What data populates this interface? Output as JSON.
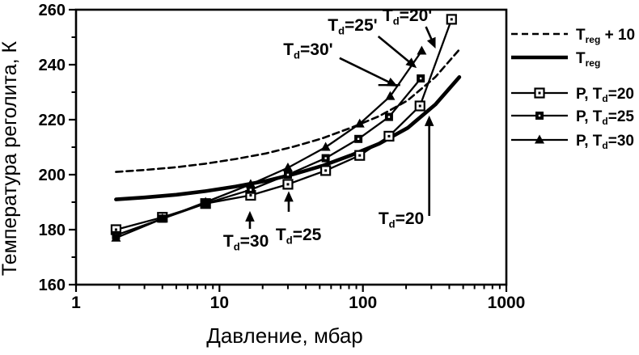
{
  "figure": {
    "background": "#ffffff",
    "ink": "#000000"
  },
  "chart_data": {
    "type": "line",
    "title": "",
    "xlabel": "Давление, мбар",
    "ylabel": "Температура реголита, К",
    "x_scale": "log",
    "xlim": [
      1,
      1000
    ],
    "ylim": [
      160,
      260
    ],
    "grid": false,
    "legend_position": "right-outside",
    "x_major_ticks": [
      1,
      10,
      100,
      1000
    ],
    "x_tick_labels": [
      "1",
      "10",
      "100",
      "1000"
    ],
    "x_minor_ticks": [
      2,
      3,
      4,
      5,
      6,
      7,
      8,
      9,
      20,
      30,
      40,
      50,
      60,
      70,
      80,
      90,
      200,
      300,
      400,
      500,
      600,
      700,
      800,
      900
    ],
    "y_major_ticks": [
      160,
      180,
      200,
      220,
      240,
      260
    ],
    "y_tick_labels": [
      "160",
      "180",
      "200",
      "220",
      "240",
      "260"
    ],
    "y_minor_ticks": [
      170,
      190,
      210,
      230,
      250
    ],
    "series": [
      {
        "name": "T_[reg] + 10",
        "style": "dashed",
        "marker": "none",
        "x": [
          1.9,
          3,
          5,
          8,
          13,
          21,
          33,
          52,
          82,
          130,
          205,
          320,
          470
        ],
        "y": [
          201,
          201.7,
          202.7,
          204,
          205.7,
          207.7,
          210.2,
          213.2,
          217,
          221.3,
          227,
          235.5,
          245.5
        ]
      },
      {
        "name": "T_[reg]",
        "style": "thick",
        "marker": "none",
        "x": [
          1.9,
          3,
          5,
          8,
          13,
          21,
          33,
          52,
          82,
          130,
          205,
          320,
          470
        ],
        "y": [
          191,
          191.7,
          192.7,
          194,
          195.7,
          197.7,
          200.2,
          203.2,
          207,
          211.3,
          217,
          225.5,
          235.5
        ]
      },
      {
        "name": "P, T_[d]=20",
        "style": "solid",
        "marker": "open-square",
        "x": [
          1.9,
          4,
          8,
          16.5,
          30,
          55,
          95,
          152,
          250,
          415
        ],
        "y": [
          180,
          184.5,
          189.5,
          192.5,
          196.5,
          201.5,
          207,
          214,
          225,
          256.5
        ]
      },
      {
        "name": "P, T_[d]=25",
        "style": "solid",
        "marker": "filled-square",
        "x": [
          1.9,
          4,
          8,
          16.5,
          30,
          55,
          93,
          152,
          253
        ],
        "y": [
          178,
          184,
          189.5,
          194.5,
          200,
          206,
          213,
          221,
          235
        ]
      },
      {
        "name": "P, T_[d]=30",
        "style": "solid",
        "marker": "filled-triangle",
        "x": [
          1.9,
          4,
          8,
          16.5,
          30,
          55,
          95,
          155,
          257
        ],
        "y": [
          177,
          184,
          190,
          196.5,
          202.5,
          210,
          218.5,
          228.5,
          245
        ]
      }
    ],
    "annotations": [
      {
        "text": "T_[d]=30",
        "x": 15.3,
        "y": 175.9,
        "arrow": {
          "from": [
            16.3,
            180.3
          ],
          "to": [
            16.3,
            186.8
          ]
        }
      },
      {
        "text": "T_[d]=25",
        "x": 35.6,
        "y": 178.2,
        "arrow": {
          "from": [
            30.4,
            186.5
          ],
          "to": [
            30.4,
            194.0
          ]
        }
      },
      {
        "text": "T_[d]=20",
        "x": 185,
        "y": 184.1,
        "arrow": {
          "from": [
            290,
            185.0
          ],
          "to": [
            290,
            221.5
          ]
        }
      },
      {
        "text": "T_[d]=30'",
        "x": 41.5,
        "y": 245.6,
        "arrow": {
          "from": [
            68.8,
            242.4
          ],
          "to": [
            175,
            232.1
          ]
        },
        "extra_dash": {
          "from": [
            128,
            232.6
          ],
          "to": [
            182,
            232.6
          ]
        }
      },
      {
        "text": "T_[d]=25'",
        "x": 84.8,
        "y": 254.4,
        "arrow": {
          "from": [
            128,
            250.3
          ],
          "to": [
            237,
            238.8
          ]
        }
      },
      {
        "text": "T_[d]=20'",
        "x": 204,
        "y": 257.9,
        "arrow": {
          "from": [
            275,
            253.8
          ],
          "to": [
            321,
            245.9
          ]
        }
      }
    ]
  },
  "legend": {
    "items": [
      {
        "label": "T_[reg] + 10",
        "swatch": "dashed"
      },
      {
        "label": "T_[reg]",
        "swatch": "thick"
      },
      {
        "label": "P, T_[d]=20",
        "swatch": "open-square"
      },
      {
        "label": "P, T_[d]=25",
        "swatch": "filled-square"
      },
      {
        "label": "P, T_[d]=30",
        "swatch": "filled-triangle"
      }
    ]
  }
}
